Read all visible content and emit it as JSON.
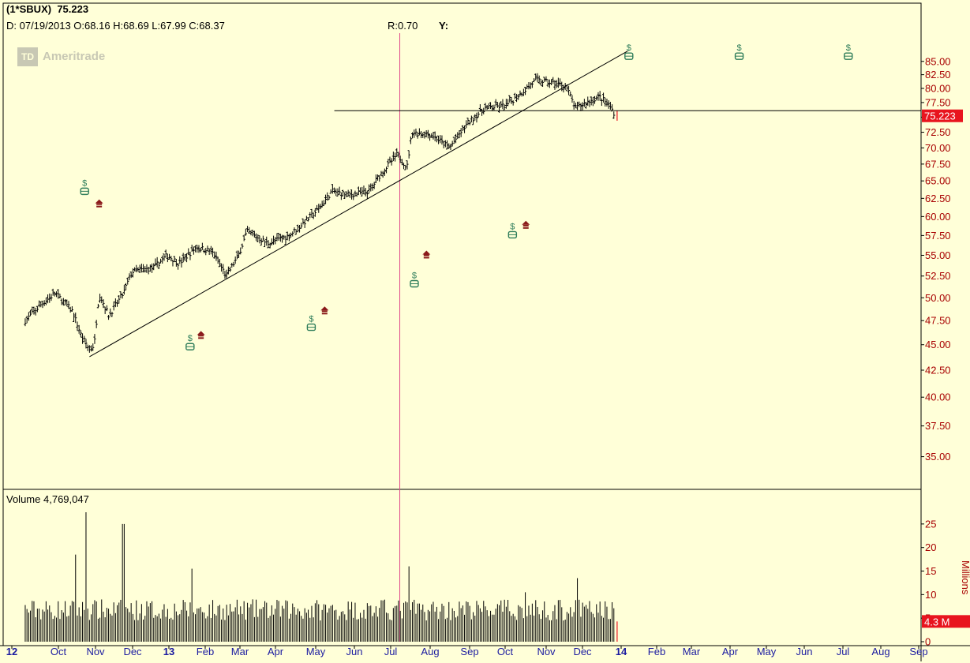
{
  "header": {
    "symbol_line": "(1*SBUX)",
    "last_price": "75.223",
    "bar_info": "D: 07/19/2013 O:68.16 H:68.69 L:67.99 C:68.37",
    "r_label": "R:0.70",
    "y_label": "Y:"
  },
  "watermark": {
    "logo": "TD",
    "text": "Ameritrade"
  },
  "volume": {
    "label": "Volume",
    "value": "4,769,047",
    "axis_unit": "Millions",
    "last_tag": "4.3 M"
  },
  "colors": {
    "background": "#ffffd8",
    "price_axis_text": "#a80000",
    "date_axis_text": "#1a1aa0",
    "bars": "#000000",
    "current_price_tag": "#e8141e",
    "buy_marker": "#2e7d5a",
    "sell_marker": "#8a1a1a",
    "cursor_line": "#e04a8a"
  },
  "chart_data": {
    "type": "ohlc",
    "y_axis_ticks": [
      "85.00",
      "82.50",
      "80.00",
      "77.50",
      "75.00",
      "72.50",
      "70.00",
      "67.50",
      "65.00",
      "62.50",
      "60.00",
      "57.50",
      "55.00",
      "52.50",
      "50.00",
      "47.50",
      "45.00",
      "42.50",
      "40.00",
      "37.50",
      "35.00"
    ],
    "y_scale": "log",
    "ylim": [
      33.5,
      88
    ],
    "x_ticks": [
      "12",
      "Oct",
      "Nov",
      "Dec",
      "13",
      "Feb",
      "Mar",
      "Apr",
      "May",
      "Jun",
      "Jul",
      "Aug",
      "Sep",
      "Oct",
      "Nov",
      "Dec",
      "14",
      "Feb",
      "Mar",
      "Apr",
      "May",
      "Jun",
      "Jul",
      "Aug",
      "Sep"
    ],
    "current_price": "75.223",
    "price_path": [
      [
        "2012-09-13",
        47.5
      ],
      [
        "2012-09-28",
        49.5
      ],
      [
        "2012-10-08",
        50.5
      ],
      [
        "2012-10-22",
        48.5
      ],
      [
        "2012-10-29",
        46.0
      ],
      [
        "2012-11-05",
        44.5
      ],
      [
        "2012-11-09",
        45.0
      ],
      [
        "2012-11-13",
        50.5
      ],
      [
        "2012-11-21",
        48.0
      ],
      [
        "2012-12-03",
        50.5
      ],
      [
        "2012-12-10",
        53.0
      ],
      [
        "2012-12-28",
        53.5
      ],
      [
        "2013-01-08",
        55.0
      ],
      [
        "2013-01-18",
        54.0
      ],
      [
        "2013-02-01",
        56.0
      ],
      [
        "2013-02-14",
        55.5
      ],
      [
        "2013-02-26",
        52.5
      ],
      [
        "2013-03-08",
        55.0
      ],
      [
        "2013-03-15",
        58.0
      ],
      [
        "2013-04-01",
        56.5
      ],
      [
        "2013-04-19",
        57.5
      ],
      [
        "2013-05-03",
        59.5
      ],
      [
        "2013-05-13",
        61.0
      ],
      [
        "2013-05-24",
        63.5
      ],
      [
        "2013-06-07",
        63.0
      ],
      [
        "2013-06-24",
        63.5
      ],
      [
        "2013-07-01",
        65.5
      ],
      [
        "2013-07-17",
        69.0
      ],
      [
        "2013-07-25",
        67.0
      ],
      [
        "2013-07-29",
        72.5
      ],
      [
        "2013-08-15",
        72.0
      ],
      [
        "2013-08-29",
        70.0
      ],
      [
        "2013-09-13",
        74.0
      ],
      [
        "2013-09-27",
        76.5
      ],
      [
        "2013-10-15",
        77.0
      ],
      [
        "2013-10-29",
        79.5
      ],
      [
        "2013-11-08",
        81.5
      ],
      [
        "2013-11-22",
        81.0
      ],
      [
        "2013-12-03",
        80.5
      ],
      [
        "2013-12-11",
        76.5
      ],
      [
        "2013-12-20",
        77.5
      ],
      [
        "2013-12-31",
        78.5
      ],
      [
        "2014-01-08",
        77.0
      ],
      [
        "2014-01-13",
        75.3
      ]
    ],
    "volume_millions": {
      "ylim": [
        0,
        29
      ],
      "y_ticks": [
        "25",
        "20",
        "15",
        "10",
        "5",
        "0"
      ],
      "spikes": [
        [
          "2012-10-25",
          18.5
        ],
        [
          "2012-11-02",
          27.5
        ],
        [
          "2012-12-03",
          25.0
        ],
        [
          "2013-01-29",
          15.5
        ],
        [
          "2013-07-26",
          16.0
        ],
        [
          "2013-10-31",
          10.5
        ],
        [
          "2013-12-12",
          13.5
        ]
      ]
    },
    "trendlines": [
      {
        "from": [
          "2012-11-05",
          43.8
        ],
        "to": [
          "2014-01-23",
          87.0
        ]
      },
      {
        "horizontal": 76.1,
        "from": "2013-05-26",
        "to": "2014-09-01"
      }
    ],
    "markers": [
      {
        "kind": "buy",
        "date": "2012-11-01",
        "price": 63.5
      },
      {
        "kind": "sell",
        "date": "2012-11-13",
        "price": 61.8
      },
      {
        "kind": "buy",
        "date": "2013-01-27",
        "price": 44.8
      },
      {
        "kind": "sell",
        "date": "2013-02-05",
        "price": 46.0
      },
      {
        "kind": "buy",
        "date": "2013-05-07",
        "price": 46.8
      },
      {
        "kind": "sell",
        "date": "2013-05-18",
        "price": 48.6
      },
      {
        "kind": "buy",
        "date": "2013-07-31",
        "price": 51.6
      },
      {
        "kind": "sell",
        "date": "2013-08-10",
        "price": 55.1
      },
      {
        "kind": "buy",
        "date": "2013-10-20",
        "price": 57.6
      },
      {
        "kind": "sell",
        "date": "2013-10-31",
        "price": 58.9
      },
      {
        "kind": "buy",
        "date": "2014-01-24",
        "price": 86.0
      },
      {
        "kind": "buy",
        "date": "2014-04-25",
        "price": 86.0
      },
      {
        "kind": "buy",
        "date": "2014-07-24",
        "price": 86.0
      }
    ],
    "cursor_date": "2013-07-19",
    "xlabel": "",
    "ylabel": "",
    "grid": false,
    "legend": "none"
  }
}
